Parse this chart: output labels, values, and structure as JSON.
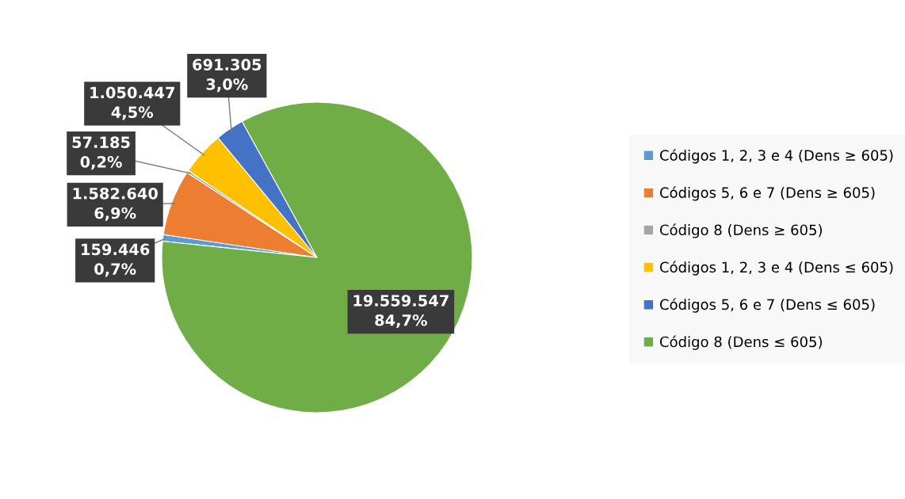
{
  "chart_data": {
    "type": "pie",
    "categories": [
      "Códigos 1, 2, 3 e 4 (Dens ≥ 605)",
      "Códigos 5, 6 e 7 (Dens ≥ 605)",
      "Código 8 (Dens ≥ 605)",
      "Códigos 1, 2, 3 e 4 (Dens ≤ 605)",
      "Códigos 5, 6 e 7 (Dens ≤ 605)",
      "Código 8 (Dens ≤ 605)"
    ],
    "values": [
      159446,
      1582640,
      57185,
      1050447,
      691305,
      19559547
    ],
    "colors": [
      "#5b9bd5",
      "#ed7d31",
      "#a5a5a5",
      "#ffc000",
      "#4472c4",
      "#70ad47"
    ],
    "value_labels": [
      "159.446\n0,7%",
      "1.582.640\n6,9%",
      "57.185\n0,2%",
      "1.050.447\n4,5%",
      "691.305\n3,0%",
      "19.559.547\n84,7%"
    ],
    "legend": "right"
  }
}
